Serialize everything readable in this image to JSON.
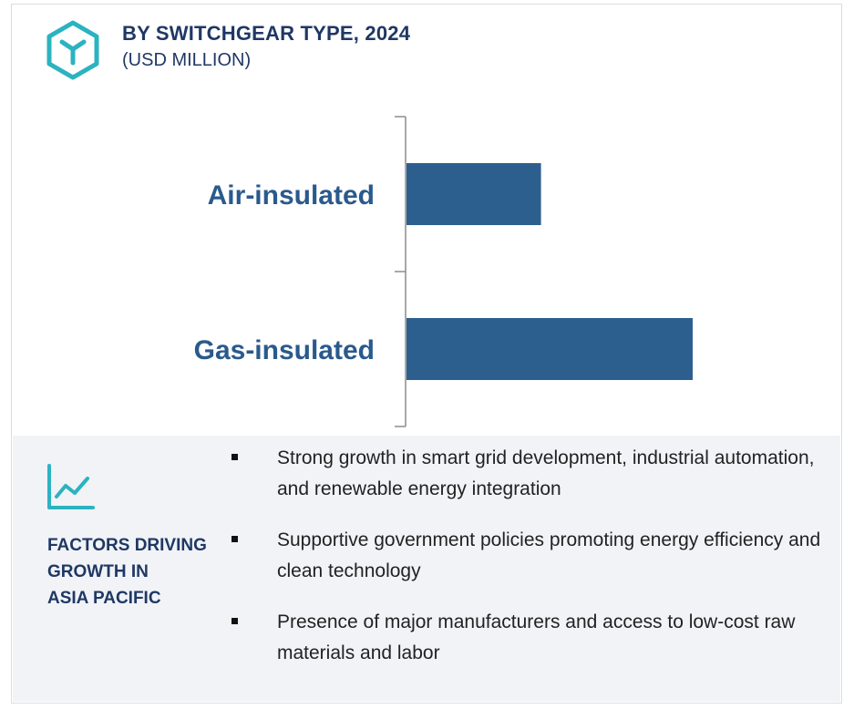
{
  "header": {
    "title": "BY SWITCHGEAR TYPE, 2024",
    "subtitle": "(USD MILLION)",
    "logo_icon": "hexagon-y-logo-icon",
    "accent_color": "#2bb3c0"
  },
  "chart_data": {
    "type": "bar",
    "orientation": "horizontal",
    "title": "BY SWITCHGEAR TYPE, 2024",
    "subtitle": "(USD MILLION)",
    "categories": [
      "Air-insulated",
      "Gas-insulated"
    ],
    "values": [
      47,
      100
    ],
    "bar_color": "#2d5f8e",
    "xlim": [
      0,
      100
    ],
    "grid": false,
    "legend": "none"
  },
  "factors": {
    "icon": "trend-line-icon",
    "title_lines": [
      "FACTORS DRIVING",
      "GROWTH IN",
      "ASIA PACIFIC"
    ],
    "bullets": [
      "Strong growth in smart grid development, industrial automation, and renewable energy integration",
      "Supportive government policies promoting energy efficiency and clean technology",
      "Presence of major manufacturers and access to low-cost raw materials and labor"
    ]
  }
}
